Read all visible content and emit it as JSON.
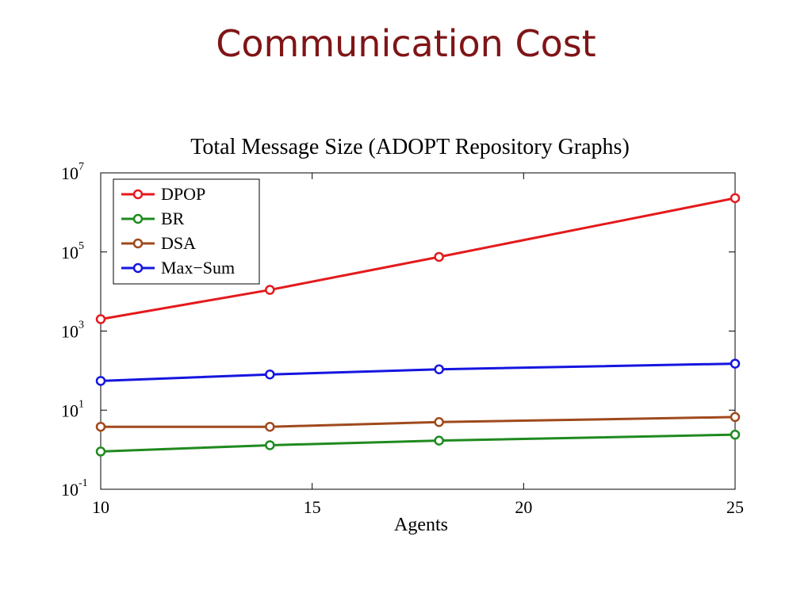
{
  "slide": {
    "title": "Communication Cost"
  },
  "chart_data": {
    "type": "line",
    "title": "Total Message Size (ADOPT Repository Graphs)",
    "xlabel": "Agents",
    "ylabel": "",
    "yscale": "log",
    "xlim": [
      10,
      25
    ],
    "ylim": [
      0.1,
      10000000
    ],
    "x_ticks": [
      10,
      15,
      20,
      25
    ],
    "y_ticks": [
      {
        "base": "10",
        "exp": "-1",
        "value": 0.1
      },
      {
        "base": "10",
        "exp": "1",
        "value": 10
      },
      {
        "base": "10",
        "exp": "3",
        "value": 1000
      },
      {
        "base": "10",
        "exp": "5",
        "value": 100000
      },
      {
        "base": "10",
        "exp": "7",
        "value": 10000000
      }
    ],
    "grid": false,
    "legend_position": "top-left",
    "x": [
      10,
      14,
      18,
      25
    ],
    "series": [
      {
        "name": "DPOP",
        "color": "#e41a1c",
        "values": [
          2000,
          11000,
          75000,
          2300000
        ]
      },
      {
        "name": "BR",
        "color": "#1f8a1f",
        "values": [
          0.9,
          1.3,
          1.7,
          2.4
        ]
      },
      {
        "name": "DSA",
        "color": "#a0491c",
        "values": [
          3.8,
          3.8,
          5.0,
          6.7
        ]
      },
      {
        "name": "Max−Sum",
        "color": "#1515e0",
        "values": [
          55,
          80,
          108,
          150
        ]
      }
    ]
  }
}
